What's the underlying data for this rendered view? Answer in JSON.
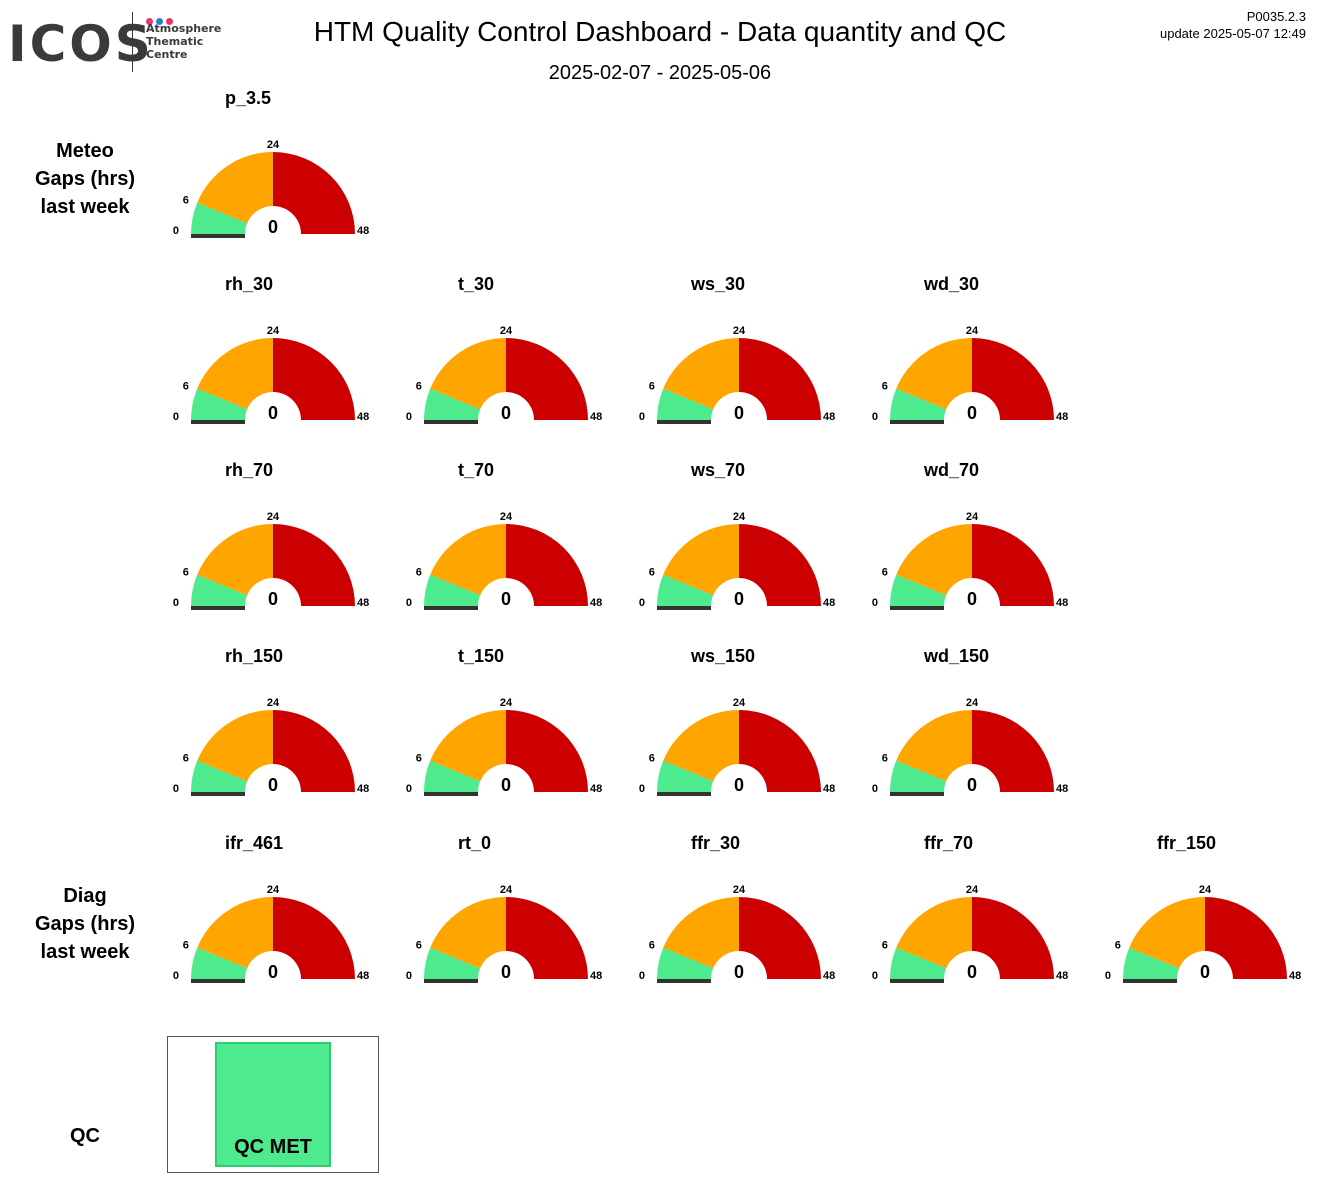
{
  "header": {
    "logo": {
      "brand": "ICOS",
      "subtitle_lines": [
        "Atmosphere",
        "Thematic",
        "Centre"
      ],
      "dot_colors": [
        "#e8336e",
        "#2e7fd1",
        "#e8336e"
      ]
    },
    "title": "HTM  Quality Control Dashboard - Data quantity and QC",
    "period": "2025-02-07 - 2025-05-06",
    "version": "P0035.2.3",
    "update": "update  2025-05-07 12:49"
  },
  "row_labels": [
    {
      "lines": [
        "Meteo",
        "Gaps (hrs)",
        "last week"
      ]
    },
    {
      "lines": [
        "Diag",
        "Gaps (hrs)",
        "last week"
      ]
    }
  ],
  "colors": {
    "green": "#4deb8e",
    "orange": "#ffa500",
    "red": "#cc0000",
    "needle": "#333333",
    "qc_met": "#4deb8e"
  },
  "chart_data": {
    "type": "gauge",
    "units": "hrs",
    "range": [
      0,
      48
    ],
    "ticks": [
      "0",
      "6",
      "24",
      "48"
    ],
    "bands": [
      {
        "from": 0,
        "to": 6,
        "color": "green"
      },
      {
        "from": 6,
        "to": 24,
        "color": "orange"
      },
      {
        "from": 24,
        "to": 48,
        "color": "red"
      }
    ],
    "gauges": [
      {
        "name": "p_3.5",
        "value": 0
      },
      {
        "name": "rh_30",
        "value": 0
      },
      {
        "name": "t_30",
        "value": 0
      },
      {
        "name": "ws_30",
        "value": 0
      },
      {
        "name": "wd_30",
        "value": 0
      },
      {
        "name": "rh_70",
        "value": 0
      },
      {
        "name": "t_70",
        "value": 0
      },
      {
        "name": "ws_70",
        "value": 0
      },
      {
        "name": "wd_70",
        "value": 0
      },
      {
        "name": "rh_150",
        "value": 0
      },
      {
        "name": "t_150",
        "value": 0
      },
      {
        "name": "ws_150",
        "value": 0
      },
      {
        "name": "wd_150",
        "value": 0
      },
      {
        "name": "ifr_461",
        "value": 0
      },
      {
        "name": "rt_0",
        "value": 0
      },
      {
        "name": "ffr_30",
        "value": 0
      },
      {
        "name": "ffr_70",
        "value": 0
      },
      {
        "name": "ffr_150",
        "value": 0
      }
    ]
  },
  "qc": {
    "label": "QC",
    "status": "QC MET"
  }
}
